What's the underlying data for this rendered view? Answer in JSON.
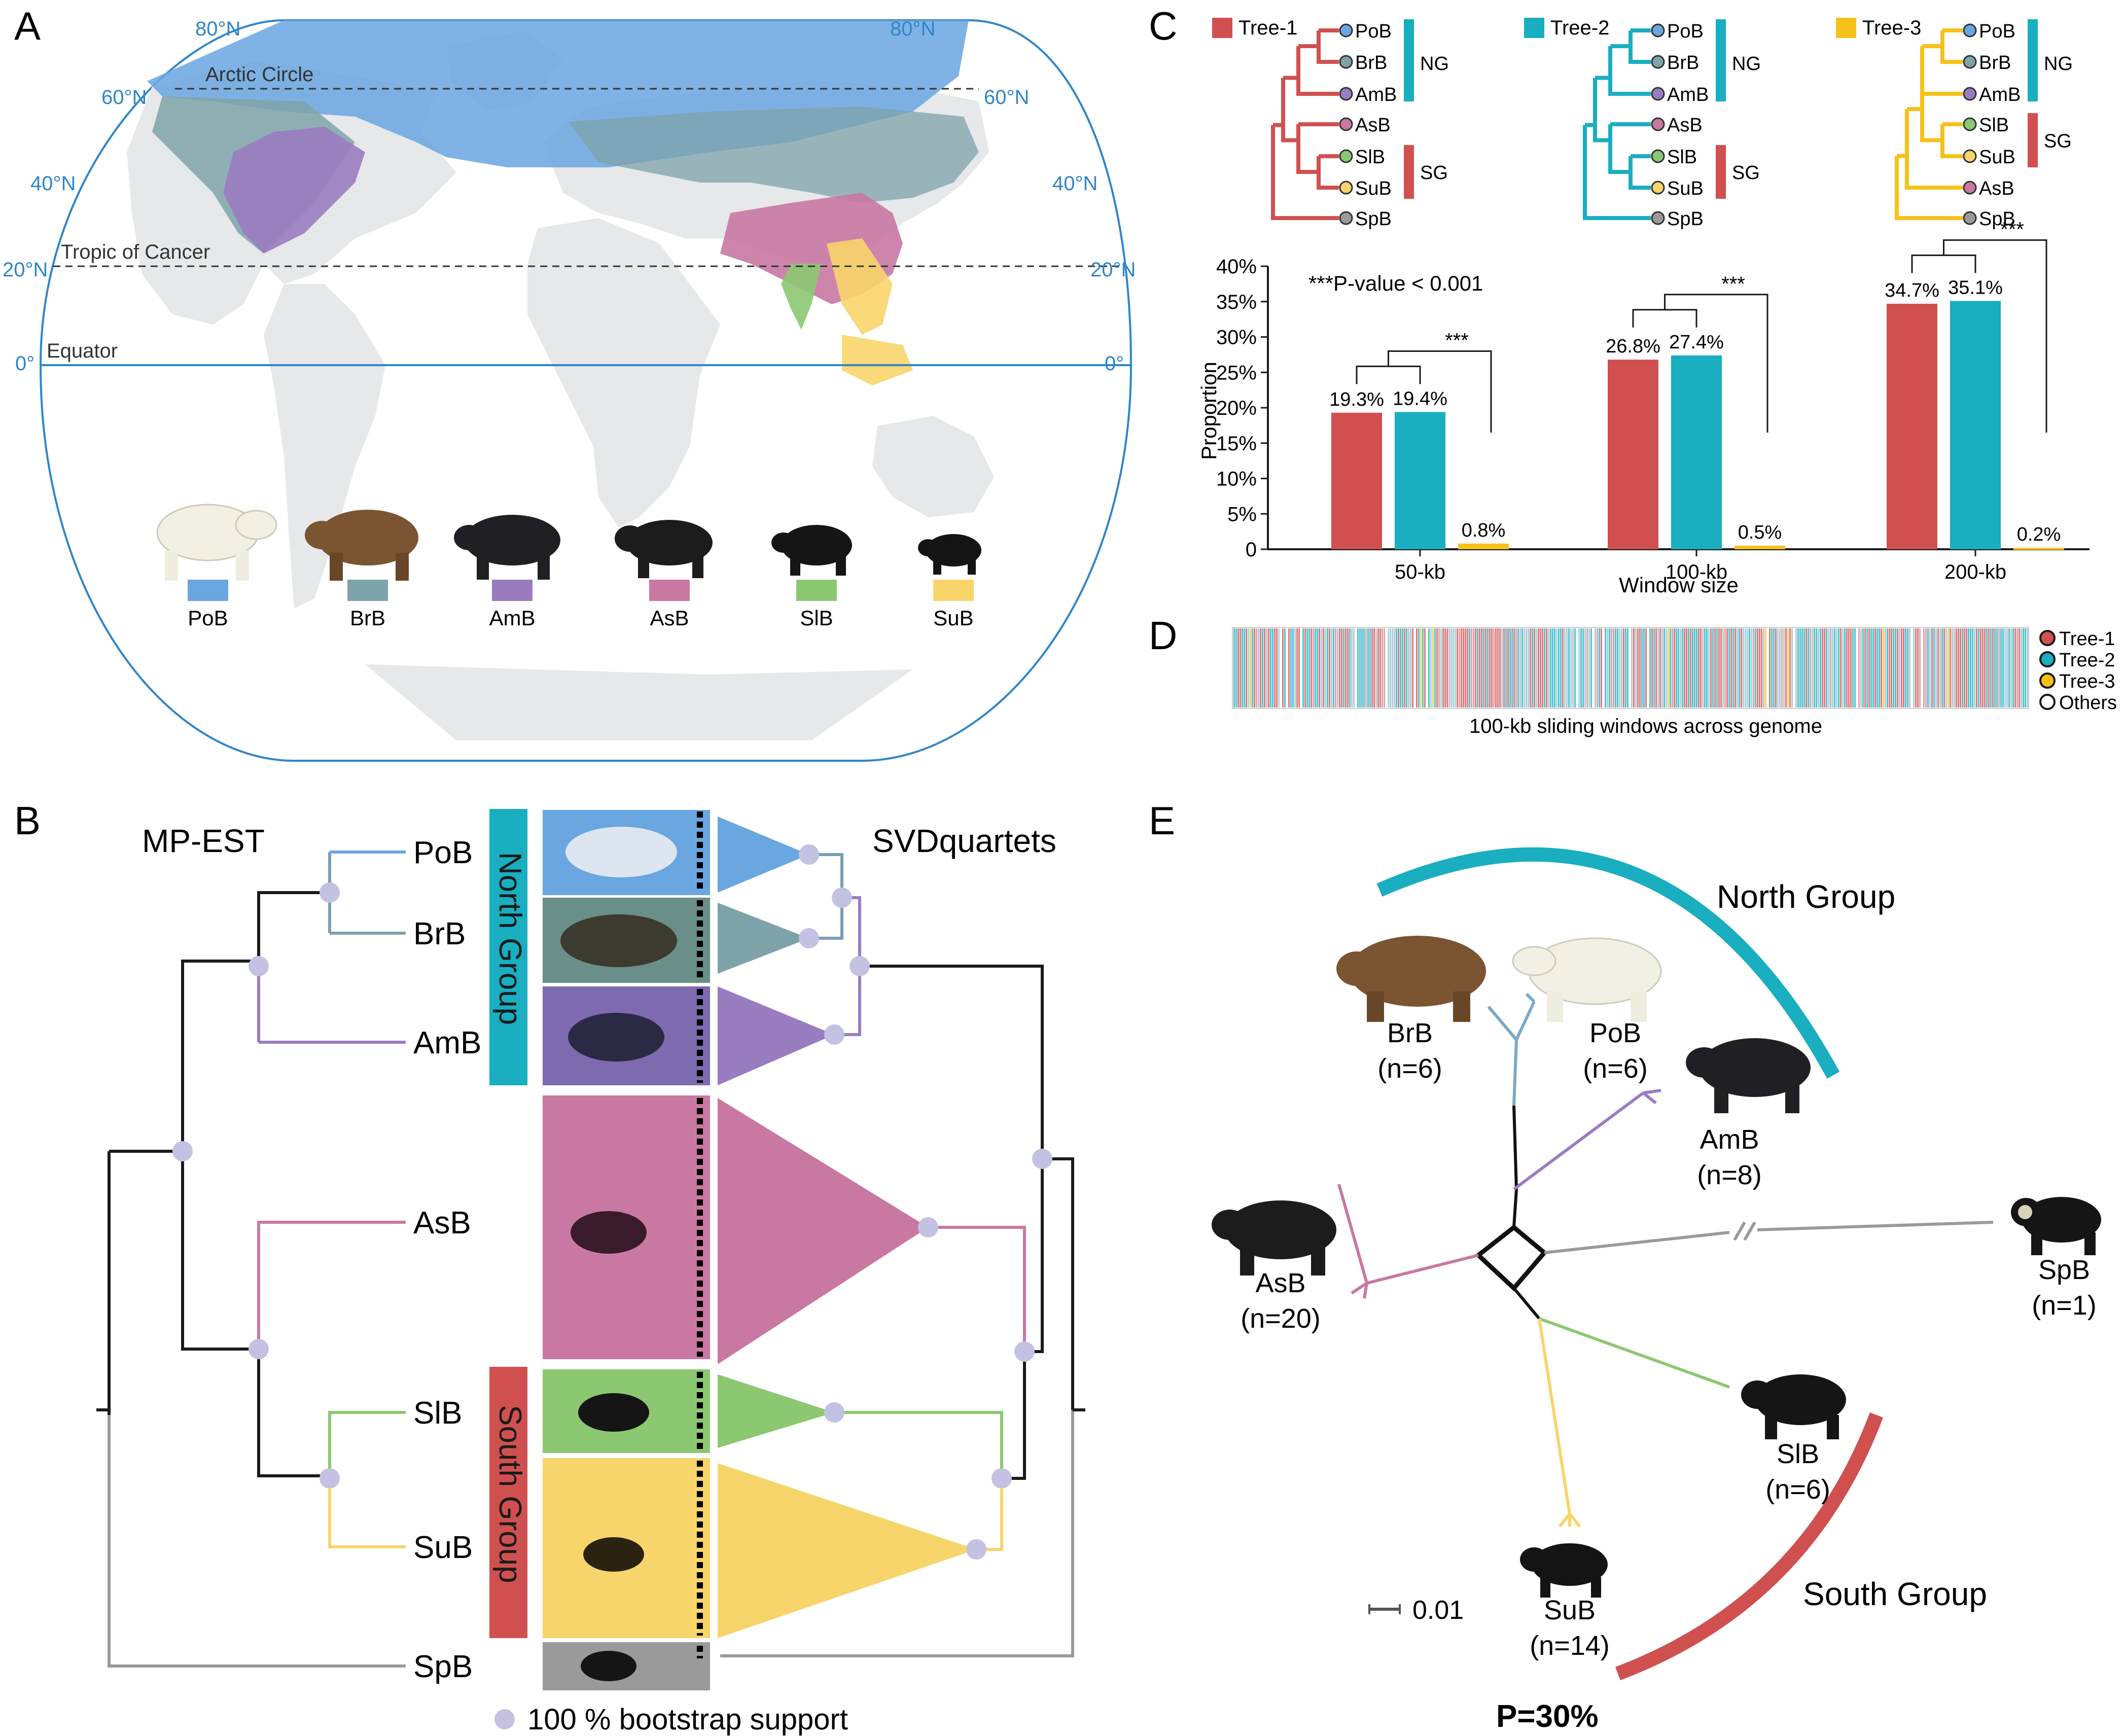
{
  "panels": {
    "a": "A",
    "b": "B",
    "c": "C",
    "d": "D",
    "e": "E"
  },
  "map": {
    "lat_labels": {
      "n80": "80°N",
      "n60": "60°N",
      "n40": "40°N",
      "n20": "20°N",
      "eq": "0°"
    },
    "lines": {
      "arctic": "Arctic Circle",
      "cancer": "Tropic of Cancer",
      "equator": "Equator"
    },
    "legend": [
      {
        "code": "PoB",
        "color": "#6aa6e0"
      },
      {
        "code": "BrB",
        "color": "#7ea3a9"
      },
      {
        "code": "AmB",
        "color": "#9a7cc1"
      },
      {
        "code": "AsB",
        "color": "#c978a2"
      },
      {
        "code": "SlB",
        "color": "#8cc872"
      },
      {
        "code": "SuB",
        "color": "#f8d56a"
      }
    ]
  },
  "panel_b": {
    "left_title": "MP-EST",
    "right_title": "SVDquartets",
    "taxa": [
      "PoB",
      "BrB",
      "AmB",
      "AsB",
      "SlB",
      "SuB",
      "SpB"
    ],
    "north_group": "North Group",
    "south_group": "South Group",
    "bootstrap_legend": "100 % bootstrap support"
  },
  "panel_c": {
    "trees": [
      {
        "name": "Tree-1",
        "color": "#d05050",
        "tips": [
          "PoB",
          "BrB",
          "AmB",
          "AsB",
          "SlB",
          "SuB",
          "SpB"
        ],
        "ng": "NG",
        "sg": "SG"
      },
      {
        "name": "Tree-2",
        "color": "#19aec0",
        "tips": [
          "PoB",
          "BrB",
          "AmB",
          "AsB",
          "SlB",
          "SuB",
          "SpB"
        ],
        "ng": "NG",
        "sg": "SG"
      },
      {
        "name": "Tree-3",
        "color": "#f6c21a",
        "tips": [
          "PoB",
          "BrB",
          "AmB",
          "SlB",
          "SuB",
          "AsB",
          "SpB"
        ],
        "ng": "NG",
        "sg": "SG"
      }
    ],
    "significance": "***P-value < 0.001",
    "stars": "***"
  },
  "chart_data": {
    "type": "bar",
    "categories": [
      "50-kb",
      "100-kb",
      "200-kb"
    ],
    "series": [
      {
        "name": "Tree-1",
        "values": [
          19.3,
          26.8,
          34.7
        ],
        "color": "#d05050"
      },
      {
        "name": "Tree-2",
        "values": [
          19.4,
          27.4,
          35.1
        ],
        "color": "#19aec0"
      },
      {
        "name": "Tree-3",
        "values": [
          0.8,
          0.5,
          0.2
        ],
        "color": "#f6c21a"
      }
    ],
    "value_labels": [
      [
        "19.3%",
        "19.4%",
        "0.8%"
      ],
      [
        "26.8%",
        "27.4%",
        "0.5%"
      ],
      [
        "34.7%",
        "35.1%",
        "0.2%"
      ]
    ],
    "xlabel": "Window size",
    "ylabel": "Proportion",
    "ylim": [
      0,
      40
    ],
    "yticks": [
      "0",
      "5%",
      "10%",
      "15%",
      "20%",
      "25%",
      "30%",
      "35%",
      "40%"
    ]
  },
  "panel_d": {
    "caption": "100-kb sliding windows across genome",
    "legend": [
      {
        "label": "Tree-1",
        "color": "#d05050"
      },
      {
        "label": "Tree-2",
        "color": "#19aec0"
      },
      {
        "label": "Tree-3",
        "color": "#f6c21a"
      },
      {
        "label": "Others",
        "color": "#ffffff"
      }
    ]
  },
  "panel_e": {
    "north_group": "North Group",
    "south_group": "South Group",
    "taxa": [
      {
        "code": "BrB",
        "n": "(n=6)"
      },
      {
        "code": "PoB",
        "n": "(n=6)"
      },
      {
        "code": "AmB",
        "n": "(n=8)"
      },
      {
        "code": "AsB",
        "n": "(n=20)"
      },
      {
        "code": "SpB",
        "n": "(n=1)"
      },
      {
        "code": "SlB",
        "n": "(n=6)"
      },
      {
        "code": "SuB",
        "n": "(n=14)"
      }
    ],
    "scale": "0.01",
    "p_value": "P=30%"
  }
}
